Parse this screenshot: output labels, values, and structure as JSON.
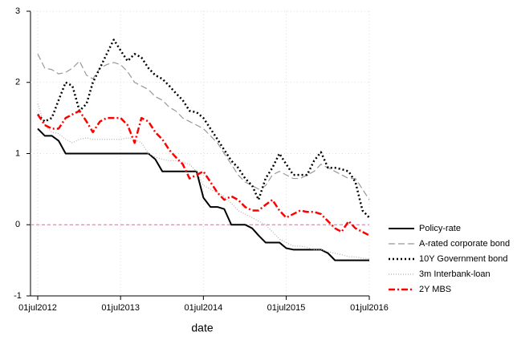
{
  "chart_data": {
    "type": "line",
    "x_label": "date",
    "x": [
      "2012-07-01",
      "2012-08-01",
      "2012-09-01",
      "2012-10-01",
      "2012-11-01",
      "2012-12-01",
      "2013-01-01",
      "2013-02-01",
      "2013-03-01",
      "2013-04-01",
      "2013-05-01",
      "2013-06-01",
      "2013-07-01",
      "2013-08-01",
      "2013-09-01",
      "2013-10-01",
      "2013-11-01",
      "2013-12-01",
      "2014-01-01",
      "2014-02-01",
      "2014-03-01",
      "2014-04-01",
      "2014-05-01",
      "2014-06-01",
      "2014-07-01",
      "2014-08-01",
      "2014-09-01",
      "2014-10-01",
      "2014-11-01",
      "2014-12-01",
      "2015-01-01",
      "2015-02-01",
      "2015-03-01",
      "2015-04-01",
      "2015-05-01",
      "2015-06-01",
      "2015-07-01",
      "2015-08-01",
      "2015-09-01",
      "2015-10-01",
      "2015-11-01",
      "2015-12-01",
      "2016-01-01",
      "2016-02-01",
      "2016-03-01",
      "2016-04-01",
      "2016-05-01",
      "2016-06-01",
      "2016-07-01"
    ],
    "xlim": [
      "2012-07-01",
      "2016-07-01"
    ],
    "xticks": [
      {
        "value": "2012-07-01",
        "label": "01jul2012"
      },
      {
        "value": "2013-07-01",
        "label": "01jul2013"
      },
      {
        "value": "2014-07-01",
        "label": "01jul2014"
      },
      {
        "value": "2015-07-01",
        "label": "01jul2015"
      },
      {
        "value": "2016-07-01",
        "label": "01jul2016"
      }
    ],
    "ylim": [
      -1,
      3
    ],
    "yticks": [
      -1,
      0,
      1,
      2,
      3
    ],
    "grid": true,
    "reference_line": {
      "value": 0,
      "color": "#c27ba0"
    },
    "legend_position": "right",
    "series": [
      {
        "name": "Policy-rate",
        "color": "#000000",
        "dash": "none",
        "width": 2,
        "values": [
          1.35,
          1.25,
          1.25,
          1.18,
          1.0,
          1.0,
          1.0,
          1.0,
          1.0,
          1.0,
          1.0,
          1.0,
          1.0,
          1.0,
          1.0,
          1.0,
          1.0,
          0.92,
          0.75,
          0.75,
          0.75,
          0.75,
          0.75,
          0.75,
          0.38,
          0.25,
          0.25,
          0.22,
          0.0,
          0.0,
          0.0,
          -0.05,
          -0.15,
          -0.25,
          -0.25,
          -0.25,
          -0.33,
          -0.35,
          -0.35,
          -0.35,
          -0.35,
          -0.35,
          -0.4,
          -0.5,
          -0.5,
          -0.5,
          -0.5,
          -0.5,
          -0.5
        ]
      },
      {
        "name": "A-rated corporate bond",
        "color": "#999999",
        "dash": "8 4",
        "width": 1.2,
        "values": [
          2.4,
          2.2,
          2.18,
          2.12,
          2.14,
          2.2,
          2.3,
          2.1,
          2.05,
          2.2,
          2.25,
          2.28,
          2.25,
          2.15,
          2.0,
          1.95,
          1.9,
          1.8,
          1.75,
          1.65,
          1.6,
          1.5,
          1.45,
          1.4,
          1.35,
          1.25,
          1.15,
          1.0,
          0.85,
          0.7,
          0.6,
          0.55,
          0.5,
          0.55,
          0.7,
          0.75,
          0.7,
          0.65,
          0.65,
          0.7,
          0.75,
          0.85,
          0.8,
          0.75,
          0.7,
          0.65,
          0.65,
          0.5,
          0.35
        ]
      },
      {
        "name": "10Y Government bond",
        "color": "#000000",
        "dash": "2 3",
        "width": 2.5,
        "values": [
          1.55,
          1.45,
          1.5,
          1.75,
          2.0,
          1.95,
          1.6,
          1.7,
          2.0,
          2.2,
          2.4,
          2.6,
          2.45,
          2.3,
          2.4,
          2.35,
          2.2,
          2.1,
          2.05,
          1.95,
          1.85,
          1.75,
          1.6,
          1.58,
          1.5,
          1.35,
          1.2,
          1.05,
          0.9,
          0.8,
          0.65,
          0.55,
          0.35,
          0.65,
          0.8,
          1.0,
          0.85,
          0.7,
          0.7,
          0.7,
          0.9,
          1.02,
          0.8,
          0.8,
          0.78,
          0.75,
          0.6,
          0.2,
          0.1
        ]
      },
      {
        "name": "3m Interbank-loan",
        "color": "#b0b0b0",
        "dash": "1 2",
        "width": 1.2,
        "values": [
          1.7,
          1.4,
          1.3,
          1.28,
          1.2,
          1.15,
          1.2,
          1.22,
          1.2,
          1.2,
          1.2,
          1.2,
          1.2,
          1.22,
          1.2,
          1.15,
          1.0,
          0.95,
          0.92,
          0.9,
          0.9,
          0.88,
          0.85,
          0.75,
          0.55,
          0.5,
          0.45,
          0.4,
          0.3,
          0.2,
          0.15,
          0.1,
          0.05,
          0.0,
          -0.1,
          -0.2,
          -0.25,
          -0.3,
          -0.3,
          -0.32,
          -0.35,
          -0.35,
          -0.38,
          -0.4,
          -0.42,
          -0.45,
          -0.45,
          -0.47,
          -0.48
        ]
      },
      {
        "name": "2Y MBS",
        "color": "#ff0000",
        "dash": "8 3 2 3",
        "width": 2.5,
        "values": [
          1.55,
          1.4,
          1.35,
          1.35,
          1.5,
          1.55,
          1.6,
          1.45,
          1.3,
          1.45,
          1.5,
          1.5,
          1.5,
          1.4,
          1.15,
          1.5,
          1.45,
          1.3,
          1.2,
          1.05,
          0.95,
          0.85,
          0.65,
          0.7,
          0.75,
          0.6,
          0.45,
          0.35,
          0.4,
          0.35,
          0.25,
          0.2,
          0.2,
          0.28,
          0.35,
          0.2,
          0.1,
          0.15,
          0.2,
          0.18,
          0.18,
          0.15,
          0.05,
          -0.05,
          -0.1,
          0.05,
          -0.05,
          -0.1,
          -0.15
        ]
      }
    ]
  }
}
